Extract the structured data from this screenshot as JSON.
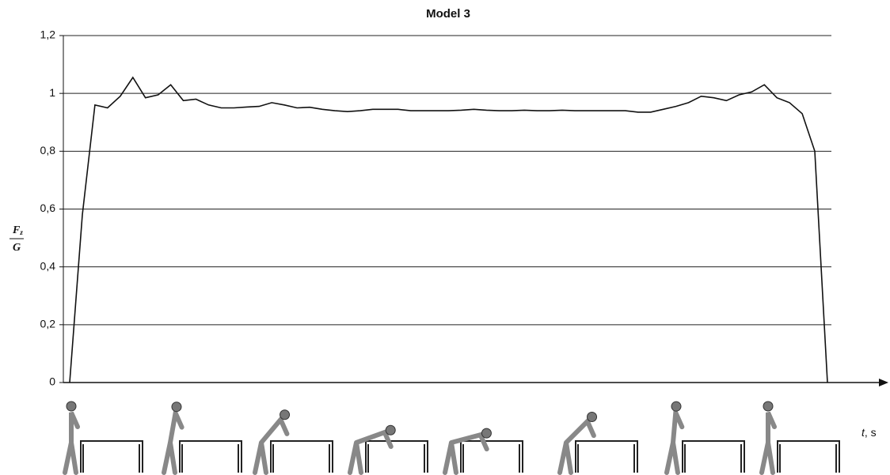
{
  "chart_data": {
    "type": "line",
    "title": "Model 3",
    "y_label": {
      "numerator": "F",
      "subscript": "z",
      "denominator": "G"
    },
    "x_label": {
      "variable": "t",
      "unit": ", s"
    },
    "ylim": [
      0,
      1.2
    ],
    "yticks": [
      0,
      {
        "value": 0.2,
        "label": "0,2"
      },
      {
        "value": 0.4,
        "label": "0,4"
      },
      {
        "value": 0.6,
        "label": "0,6"
      },
      {
        "value": 0.8,
        "label": "0,8"
      },
      1,
      {
        "value": 1.2,
        "label": "1,2"
      }
    ],
    "grid": true,
    "color": "#111111",
    "values": [
      0,
      0.58,
      0.96,
      0.95,
      0.99,
      1.055,
      0.985,
      0.995,
      1.03,
      0.975,
      0.98,
      0.96,
      0.95,
      0.95,
      0.953,
      0.955,
      0.968,
      0.96,
      0.95,
      0.952,
      0.945,
      0.94,
      0.937,
      0.94,
      0.945,
      0.945,
      0.945,
      0.94,
      0.94,
      0.94,
      0.94,
      0.942,
      0.945,
      0.942,
      0.94,
      0.94,
      0.942,
      0.94,
      0.94,
      0.942,
      0.94,
      0.94,
      0.94,
      0.94,
      0.94,
      0.935,
      0.935,
      0.945,
      0.955,
      0.968,
      0.99,
      0.985,
      0.975,
      0.995,
      1.005,
      1.03,
      0.985,
      0.968,
      0.93,
      0.8,
      0
    ]
  }
}
